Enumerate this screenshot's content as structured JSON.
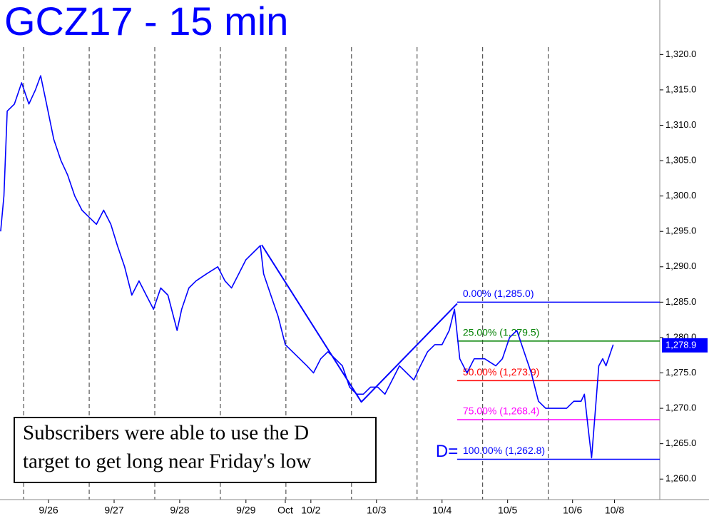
{
  "chart_data": {
    "type": "line",
    "title": "GCZ17 - 15 min",
    "x": [
      -0.35,
      -0.3,
      -0.25,
      -0.14,
      -0.03,
      0.08,
      0.18,
      0.26,
      0.35,
      0.46,
      0.57,
      0.67,
      0.78,
      0.89,
      1.0,
      1.11,
      1.22,
      1.33,
      1.43,
      1.54,
      1.65,
      1.76,
      1.87,
      1.98,
      2.09,
      2.2,
      2.34,
      2.41,
      2.52,
      2.63,
      2.79,
      2.96,
      3.07,
      3.17,
      3.28,
      3.39,
      3.5,
      3.61,
      3.66,
      3.77,
      3.88,
      3.99,
      4.1,
      4.21,
      4.32,
      4.42,
      4.53,
      4.64,
      4.75,
      4.86,
      4.97,
      5.08,
      5.18,
      5.29,
      5.4,
      5.51,
      5.62,
      5.73,
      5.84,
      5.95,
      6.05,
      6.16,
      6.27,
      6.38,
      6.49,
      6.57,
      6.65,
      6.76,
      6.87,
      7.03,
      7.2,
      7.3,
      7.41,
      7.52,
      7.63,
      7.74,
      7.85,
      7.96,
      8.07,
      8.17,
      8.28,
      8.39,
      8.5,
      8.55,
      8.61,
      8.66,
      8.72,
      8.77,
      8.83,
      8.88,
      8.99
    ],
    "series": [
      {
        "color": "#0000ff",
        "values": [
          1295,
          1300,
          1312,
          1313,
          1316,
          1313,
          1315,
          1317,
          1313,
          1308,
          1305,
          1303,
          1300,
          1298,
          1297,
          1296,
          1298,
          1296,
          1293,
          1290,
          1286,
          1288,
          1286,
          1284,
          1287,
          1286,
          1281,
          1284,
          1287,
          1288,
          1289,
          1290,
          1288,
          1287,
          1289,
          1291,
          1292,
          1293,
          1289,
          1286,
          1283,
          1279,
          1278,
          1277,
          1276,
          1275,
          1277,
          1278,
          1277,
          1276,
          1273,
          1272,
          1272,
          1273,
          1273,
          1272,
          1274,
          1276,
          1275,
          1274,
          1276,
          1278,
          1279,
          1279,
          1281,
          1284,
          1277,
          1275,
          1277,
          1277,
          1276,
          1277,
          1280,
          1281,
          1278,
          1275,
          1271,
          1270,
          1270,
          1270,
          1270,
          1271,
          1271,
          1272,
          1267,
          1263,
          1270,
          1276,
          1277,
          1276,
          1279
        ]
      }
    ],
    "pattern": {
      "color": "#0000ff",
      "x": [
        3.63,
        5.15,
        6.61
      ],
      "values": [
        1293.1,
        1270.9,
        1284.8
      ]
    },
    "levels": [
      {
        "label": "0.00% (1,285.0)",
        "value": 1285.0,
        "color": "#0000ff"
      },
      {
        "label": "25.00% (1,279.5)",
        "value": 1279.5,
        "color": "#008000"
      },
      {
        "label": "50.00% (1,273.9)",
        "value": 1273.9,
        "color": "#ff0000"
      },
      {
        "label": "75.00% (1,268.4)",
        "value": 1268.4,
        "color": "#ff00ff"
      },
      {
        "label": "100.00% (1,262.8)",
        "value": 1262.8,
        "color": "#0000ff"
      }
    ],
    "levels_start": 6.61,
    "d_label": "D=",
    "last_price": {
      "value": 1278.9,
      "label": "1,278.9"
    },
    "annotation": [
      "Subscribers were able to use the D",
      "target to get long near Friday's low"
    ],
    "xlim": [
      -0.36,
      9.7
    ],
    "ylim": [
      1257.1,
      1327.7
    ],
    "xgrid": [
      0,
      1,
      2,
      3,
      4,
      5,
      6,
      7,
      8
    ],
    "xticks": [
      {
        "value": 0.38,
        "label": "9/26"
      },
      {
        "value": 1.38,
        "label": "9/27"
      },
      {
        "value": 2.38,
        "label": "9/28"
      },
      {
        "value": 3.39,
        "label": "9/29"
      },
      {
        "value": 3.99,
        "label": "Oct"
      },
      {
        "value": 4.38,
        "label": "10/2"
      },
      {
        "value": 5.38,
        "label": "10/3"
      },
      {
        "value": 6.38,
        "label": "10/4"
      },
      {
        "value": 7.38,
        "label": "10/5"
      },
      {
        "value": 8.37,
        "label": "10/6"
      },
      {
        "value": 9.01,
        "label": "10/8"
      }
    ],
    "yticks": [
      {
        "value": 1260,
        "label": "1,260.0"
      },
      {
        "value": 1265,
        "label": "1,265.0"
      },
      {
        "value": 1270,
        "label": "1,270.0"
      },
      {
        "value": 1275,
        "label": "1,275.0"
      },
      {
        "value": 1280,
        "label": "1,280.0"
      },
      {
        "value": 1285,
        "label": "1,285.0"
      },
      {
        "value": 1290,
        "label": "1,290.0"
      },
      {
        "value": 1295,
        "label": "1,295.0"
      },
      {
        "value": 1300,
        "label": "1,300.0"
      },
      {
        "value": 1305,
        "label": "1,305.0"
      },
      {
        "value": 1310,
        "label": "1,310.0"
      },
      {
        "value": 1315,
        "label": "1,315.0"
      },
      {
        "value": 1320,
        "label": "1,320.0"
      }
    ]
  }
}
